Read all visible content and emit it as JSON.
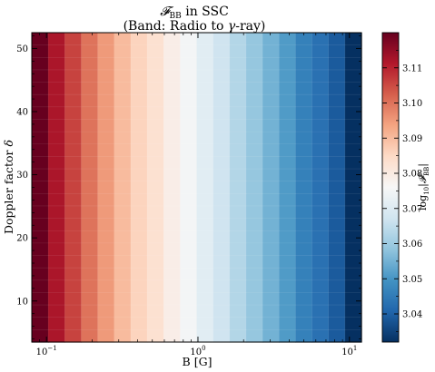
{
  "chart_data": {
    "type": "heatmap",
    "title": "𝓕BB in SSC",
    "title_line1_main": "𝓕",
    "title_line1_sub": "BB",
    "title_line1_rest": " in SSC",
    "subtitle": "(Band: Radio to γ-ray)",
    "subtitle_pre": "(Band: Radio to ",
    "subtitle_gamma": "γ",
    "subtitle_post": "-ray)",
    "xlabel": "B [G]",
    "ylabel": "Doppler factor δ",
    "colorbar_label": "log10|𝓕BB|",
    "colorbar_label_parts": {
      "log": "log",
      "sub": "10",
      "mid": "|𝓕",
      "sub2": "BB",
      "end": "|"
    },
    "x_scale": "log",
    "x_range": [
      0.08,
      12
    ],
    "x_ticks": [
      {
        "value": 0.1,
        "base": "10",
        "exp": "−1"
      },
      {
        "value": 1,
        "base": "10",
        "exp": "0"
      },
      {
        "value": 10,
        "base": "10",
        "exp": "1"
      }
    ],
    "y_range": [
      3.5,
      52.5
    ],
    "y_ticks": [
      "10",
      "20",
      "30",
      "40",
      "50"
    ],
    "x_cells": 20,
    "y_cells": 25,
    "color_range": [
      3.032,
      3.12
    ],
    "colormap": "RdBu_r",
    "colorbar_ticks": [
      "3.04",
      "3.05",
      "3.06",
      "3.07",
      "3.08",
      "3.09",
      "3.10",
      "3.11"
    ],
    "column_values": [
      3.12,
      3.112,
      3.106,
      3.1,
      3.095,
      3.09,
      3.086,
      3.083,
      3.079,
      3.075,
      3.071,
      3.067,
      3.063,
      3.059,
      3.055,
      3.051,
      3.046,
      3.043,
      3.039,
      3.032
    ],
    "grid": false
  },
  "colors": {
    "colormap_stops": [
      "#053061",
      "#2166ac",
      "#4393c3",
      "#92c5de",
      "#d1e5f0",
      "#f7f7f7",
      "#fddbc7",
      "#f4a582",
      "#d6604d",
      "#b2182b",
      "#67001f"
    ],
    "frame": "#000000",
    "background": "#ffffff"
  }
}
